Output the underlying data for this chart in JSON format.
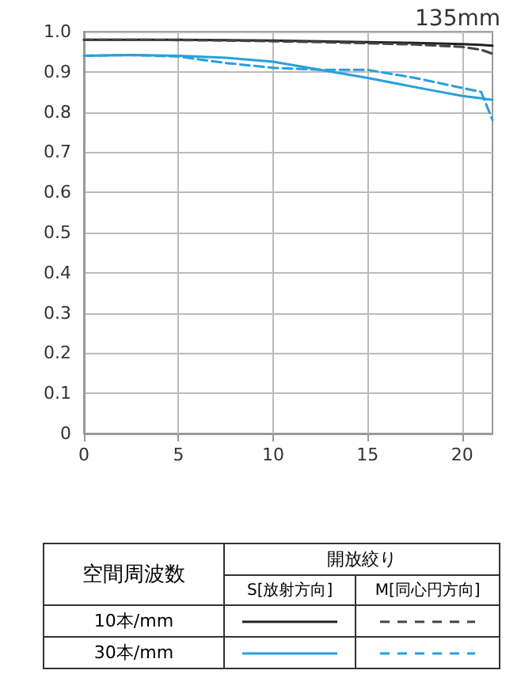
{
  "chart_data": {
    "type": "line",
    "title": "135mm",
    "x": [
      0,
      2.5,
      5,
      7.5,
      10,
      12.5,
      15,
      17.5,
      20,
      21,
      21.6
    ],
    "series": [
      {
        "color": "#222222",
        "line_style": "solid",
        "values": [
          0.98,
          0.98,
          0.98,
          0.979,
          0.978,
          0.976,
          0.974,
          0.972,
          0.969,
          0.967,
          0.965
        ]
      },
      {
        "color": "#444444",
        "line_style": "dashed",
        "values": [
          0.98,
          0.98,
          0.979,
          0.978,
          0.976,
          0.974,
          0.971,
          0.968,
          0.962,
          0.955,
          0.945
        ]
      },
      {
        "color": "#2a9fdc",
        "line_style": "solid",
        "values": [
          0.94,
          0.942,
          0.94,
          0.935,
          0.925,
          0.905,
          0.885,
          0.862,
          0.84,
          0.834,
          0.83
        ]
      },
      {
        "color": "#2a9fdc",
        "line_style": "dashed",
        "values": [
          0.94,
          0.942,
          0.938,
          0.922,
          0.91,
          0.905,
          0.905,
          0.885,
          0.86,
          0.85,
          0.78
        ]
      }
    ],
    "xlim": [
      0,
      21.6
    ],
    "xticks": [
      0,
      5,
      10,
      15,
      20
    ],
    "ylim": [
      0,
      1
    ],
    "yticks": [
      0,
      0.1,
      0.2,
      0.3,
      0.4,
      0.5,
      0.6,
      0.7,
      0.8,
      0.9,
      {
        "value": 1,
        "label": "1.0"
      }
    ],
    "grid": true,
    "marker": "none",
    "annotations": [
      "空間周波数",
      "開放絞り",
      "S[放射方向]",
      "M[同心円方向]",
      "10本/mm",
      "30本/mm"
    ]
  }
}
